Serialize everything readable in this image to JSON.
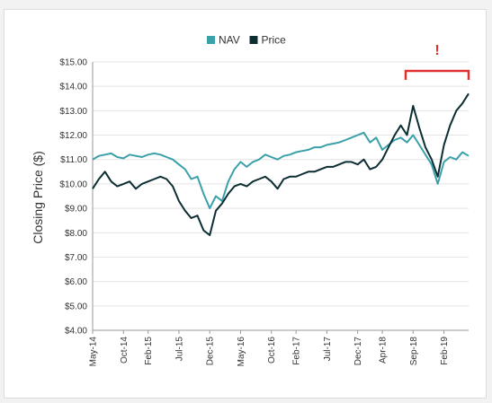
{
  "chart_data": {
    "type": "line",
    "ylabel": "Closing Price ($)",
    "ylim": [
      4,
      15
    ],
    "y_ticks": [
      "$4.00",
      "$5.00",
      "$6.00",
      "$7.00",
      "$8.00",
      "$9.00",
      "$10.00",
      "$11.00",
      "$12.00",
      "$13.00",
      "$14.00",
      "$15.00"
    ],
    "x_ticks": [
      "May-14",
      "Oct-14",
      "Feb-15",
      "Jul-15",
      "Dec-15",
      "May-16",
      "Oct-16",
      "Feb-17",
      "Jul-17",
      "Dec-17",
      "Apr-18",
      "Sep-18",
      "Feb-19"
    ],
    "x_tick_dates": [
      "2014-05",
      "2014-10",
      "2015-02",
      "2015-07",
      "2015-12",
      "2016-05",
      "2016-10",
      "2017-02",
      "2017-07",
      "2017-12",
      "2018-04",
      "2018-09",
      "2019-02"
    ],
    "xlim": [
      "2014-05",
      "2019-06"
    ],
    "grid": "horizontal",
    "legend_position": "top-center",
    "annotation": "!",
    "series": [
      {
        "name": "NAV",
        "color": "#3aa0a9",
        "x": [
          "2014-05",
          "2014-06",
          "2014-07",
          "2014-08",
          "2014-09",
          "2014-10",
          "2014-11",
          "2014-12",
          "2015-01",
          "2015-02",
          "2015-03",
          "2015-04",
          "2015-05",
          "2015-06",
          "2015-07",
          "2015-08",
          "2015-09",
          "2015-10",
          "2015-11",
          "2015-12",
          "2016-01",
          "2016-02",
          "2016-03",
          "2016-04",
          "2016-05",
          "2016-06",
          "2016-07",
          "2016-08",
          "2016-09",
          "2016-10",
          "2016-11",
          "2016-12",
          "2017-01",
          "2017-02",
          "2017-03",
          "2017-04",
          "2017-05",
          "2017-06",
          "2017-07",
          "2017-08",
          "2017-09",
          "2017-10",
          "2017-11",
          "2017-12",
          "2018-01",
          "2018-02",
          "2018-03",
          "2018-04",
          "2018-05",
          "2018-06",
          "2018-07",
          "2018-08",
          "2018-09",
          "2018-10",
          "2018-11",
          "2018-12",
          "2019-01",
          "2019-02",
          "2019-03",
          "2019-04",
          "2019-05",
          "2019-06"
        ],
        "values": [
          11.0,
          11.15,
          11.2,
          11.25,
          11.1,
          11.05,
          11.2,
          11.15,
          11.1,
          11.2,
          11.25,
          11.2,
          11.1,
          11.0,
          10.8,
          10.6,
          10.2,
          10.3,
          9.6,
          9.0,
          9.5,
          9.3,
          10.1,
          10.6,
          10.9,
          10.7,
          10.9,
          11.0,
          11.2,
          11.1,
          11.0,
          11.15,
          11.2,
          11.3,
          11.35,
          11.4,
          11.5,
          11.5,
          11.6,
          11.65,
          11.7,
          11.8,
          11.9,
          12.0,
          12.1,
          11.7,
          11.9,
          11.4,
          11.6,
          11.8,
          11.9,
          11.7,
          12.0,
          11.6,
          11.2,
          10.8,
          10.0,
          10.9,
          11.1,
          11.0,
          11.3,
          11.15
        ]
      },
      {
        "name": "Price",
        "color": "#0c2e33",
        "x": [
          "2014-05",
          "2014-06",
          "2014-07",
          "2014-08",
          "2014-09",
          "2014-10",
          "2014-11",
          "2014-12",
          "2015-01",
          "2015-02",
          "2015-03",
          "2015-04",
          "2015-05",
          "2015-06",
          "2015-07",
          "2015-08",
          "2015-09",
          "2015-10",
          "2015-11",
          "2015-12",
          "2016-01",
          "2016-02",
          "2016-03",
          "2016-04",
          "2016-05",
          "2016-06",
          "2016-07",
          "2016-08",
          "2016-09",
          "2016-10",
          "2016-11",
          "2016-12",
          "2017-01",
          "2017-02",
          "2017-03",
          "2017-04",
          "2017-05",
          "2017-06",
          "2017-07",
          "2017-08",
          "2017-09",
          "2017-10",
          "2017-11",
          "2017-12",
          "2018-01",
          "2018-02",
          "2018-03",
          "2018-04",
          "2018-05",
          "2018-06",
          "2018-07",
          "2018-08",
          "2018-09",
          "2018-10",
          "2018-11",
          "2018-12",
          "2019-01",
          "2019-02",
          "2019-03",
          "2019-04",
          "2019-05",
          "2019-06"
        ],
        "values": [
          9.8,
          10.2,
          10.5,
          10.1,
          9.9,
          10.0,
          10.1,
          9.8,
          10.0,
          10.1,
          10.2,
          10.3,
          10.2,
          9.9,
          9.3,
          8.9,
          8.6,
          8.7,
          8.1,
          7.9,
          8.9,
          9.2,
          9.6,
          9.9,
          10.0,
          9.9,
          10.1,
          10.2,
          10.3,
          10.1,
          9.8,
          10.2,
          10.3,
          10.3,
          10.4,
          10.5,
          10.5,
          10.6,
          10.7,
          10.7,
          10.8,
          10.9,
          10.9,
          10.8,
          11.0,
          10.6,
          10.7,
          11.0,
          11.5,
          12.0,
          12.4,
          12.0,
          13.2,
          12.3,
          11.5,
          11.0,
          10.3,
          11.6,
          12.4,
          13.0,
          13.3,
          13.7
        ]
      }
    ]
  }
}
